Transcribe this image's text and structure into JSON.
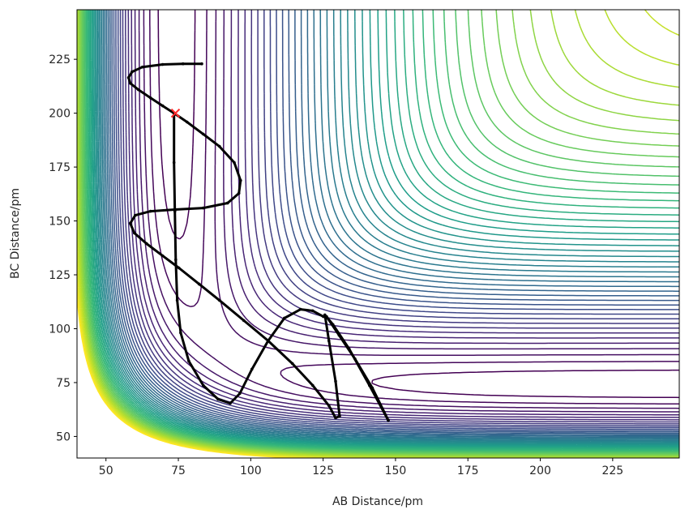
{
  "chart_data": {
    "type": "contour",
    "title": "",
    "xlabel": "AB Distance/pm",
    "ylabel": "BC Distance/pm",
    "xlim": [
      40,
      248
    ],
    "ylim": [
      40,
      248
    ],
    "xticks": [
      50,
      75,
      100,
      125,
      150,
      175,
      200,
      225
    ],
    "yticks": [
      50,
      75,
      100,
      125,
      150,
      175,
      200,
      225
    ],
    "xtick_labels": [
      "50",
      "75",
      "100",
      "125",
      "150",
      "175",
      "200",
      "225"
    ],
    "ytick_labels": [
      "50",
      "75",
      "100",
      "125",
      "150",
      "175",
      "200",
      "225"
    ],
    "grid": false,
    "colormap": "viridis",
    "trajectory_color": "#000000",
    "start_marker": {
      "x": 74,
      "y": 200,
      "color": "#ff2a2a",
      "symbol": "x"
    },
    "trajectories": [
      {
        "points": [
          [
            83.1,
            222.9
          ],
          [
            76.6,
            222.9
          ],
          [
            69.6,
            222.6
          ],
          [
            62.6,
            221.4
          ],
          [
            59.0,
            219.2
          ],
          [
            57.8,
            216.5
          ],
          [
            58.4,
            213.9
          ],
          [
            61.2,
            210.9
          ],
          [
            65.4,
            207.1
          ],
          [
            69.6,
            203.4
          ],
          [
            73.5,
            200.0
          ],
          [
            78.0,
            195.9
          ],
          [
            83.6,
            190.3
          ],
          [
            89.2,
            184.6
          ],
          [
            94.3,
            177.1
          ],
          [
            96.5,
            168.8
          ],
          [
            95.9,
            162.8
          ],
          [
            92.0,
            158.3
          ],
          [
            83.6,
            156.0
          ],
          [
            73.8,
            155.3
          ],
          [
            65.4,
            154.5
          ],
          [
            60.1,
            152.6
          ],
          [
            58.4,
            148.9
          ],
          [
            59.8,
            144.4
          ],
          [
            64.0,
            139.5
          ],
          [
            69.6,
            133.8
          ],
          [
            75.2,
            128.2
          ],
          [
            82.2,
            120.7
          ],
          [
            89.2,
            113.2
          ],
          [
            97.6,
            103.8
          ],
          [
            106.0,
            94.4
          ],
          [
            114.4,
            83.8
          ],
          [
            121.4,
            73.7
          ],
          [
            127.0,
            64.3
          ],
          [
            129.3,
            58.6
          ],
          [
            130.7,
            59.4
          ],
          [
            129.3,
            75.6
          ],
          [
            127.0,
            94.4
          ],
          [
            125.6,
            106.4
          ],
          [
            128.4,
            101.9
          ],
          [
            134.0,
            90.6
          ],
          [
            141.0,
            73.7
          ],
          [
            147.5,
            57.5
          ]
        ]
      },
      {
        "points": [
          [
            73.5,
            200.0
          ],
          [
            73.5,
            177.1
          ],
          [
            73.8,
            154.5
          ],
          [
            74.1,
            132.0
          ],
          [
            74.6,
            113.2
          ],
          [
            75.8,
            98.1
          ],
          [
            78.6,
            85.0
          ],
          [
            83.6,
            73.7
          ],
          [
            88.7,
            67.3
          ],
          [
            92.9,
            65.4
          ],
          [
            96.2,
            69.9
          ],
          [
            100.4,
            81.2
          ],
          [
            106.0,
            94.4
          ],
          [
            111.6,
            104.9
          ],
          [
            117.2,
            109.0
          ],
          [
            121.4,
            108.3
          ],
          [
            125.1,
            105.6
          ],
          [
            126.2,
            105.6
          ],
          [
            130.5,
            97.0
          ],
          [
            136.0,
            86.0
          ],
          [
            142.0,
            72.5
          ],
          [
            147.5,
            57.5
          ]
        ]
      }
    ]
  }
}
